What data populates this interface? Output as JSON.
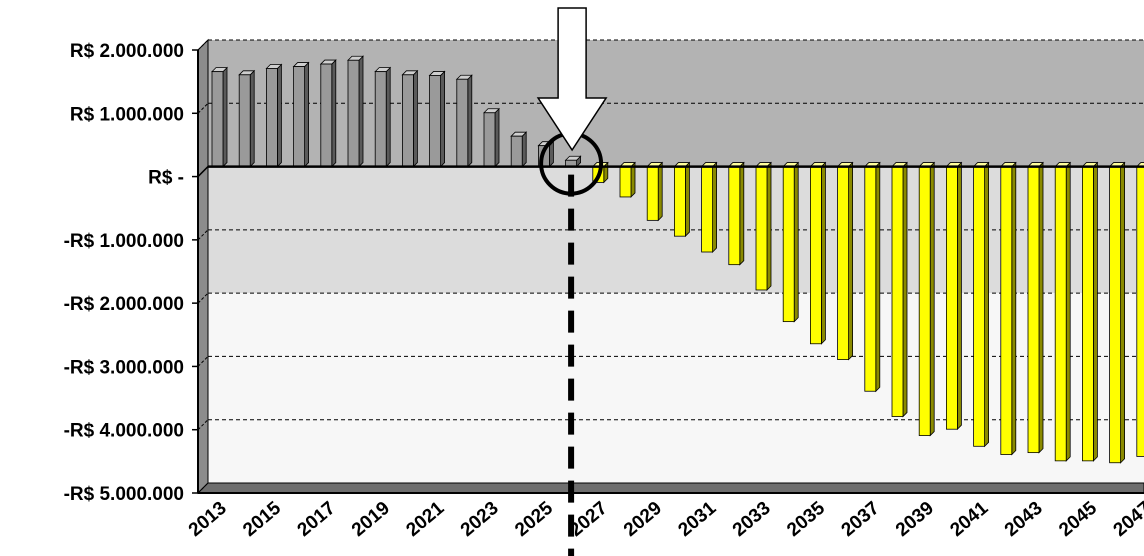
{
  "chart_data": {
    "type": "bar",
    "categories": [
      "2013",
      "2014",
      "2015",
      "2016",
      "2017",
      "2018",
      "2019",
      "2020",
      "2021",
      "2022",
      "2023",
      "2024",
      "2025",
      "2026",
      "2027",
      "2028",
      "2029",
      "2030",
      "2031",
      "2032",
      "2033",
      "2034",
      "2035",
      "2036",
      "2037",
      "2038",
      "2039",
      "2040",
      "2041",
      "2042",
      "2043",
      "2044",
      "2045",
      "2046",
      "2047"
    ],
    "x_tick_labels": [
      "2013",
      "2015",
      "2017",
      "2019",
      "2021",
      "2023",
      "2025",
      "2027",
      "2029",
      "2031",
      "2033",
      "2035",
      "2037",
      "2039",
      "2041",
      "2043",
      "2045",
      "2047"
    ],
    "values": [
      1500000,
      1450000,
      1550000,
      1580000,
      1620000,
      1680000,
      1500000,
      1450000,
      1440000,
      1380000,
      850000,
      480000,
      330000,
      100000,
      -250000,
      -480000,
      -850000,
      -1100000,
      -1350000,
      -1550000,
      -1950000,
      -2450000,
      -2800000,
      -3050000,
      -3550000,
      -3950000,
      -4250000,
      -4150000,
      -4420000,
      -4550000,
      -4520000,
      -4650000,
      -4650000,
      -4680000,
      -4580000
    ],
    "ylim": [
      -5000000,
      2000000
    ],
    "y_ticks": [
      2000000,
      1000000,
      0,
      -1000000,
      -2000000,
      -3000000,
      -4000000,
      -5000000
    ],
    "y_tick_labels": [
      "R$ 2.000.000",
      "R$ 1.000.000",
      "R$ -",
      "-R$ 1.000.000",
      "-R$ 2.000.000",
      "-R$ 3.000.000",
      "-R$ 4.000.000",
      "-R$ 5.000.000"
    ],
    "title": "",
    "xlabel": "",
    "ylabel": "",
    "grid": true,
    "legend": "none",
    "highlight_category": "2026",
    "colors": {
      "positive": "#9a9a9a",
      "negative": "#ffff00",
      "band_top": "#b3b3b3",
      "band_mid": "#dcdcdc",
      "band_low": "#f7f7f7",
      "wall_side": "#8c8c8c",
      "floor": "#6e6e6e"
    }
  }
}
